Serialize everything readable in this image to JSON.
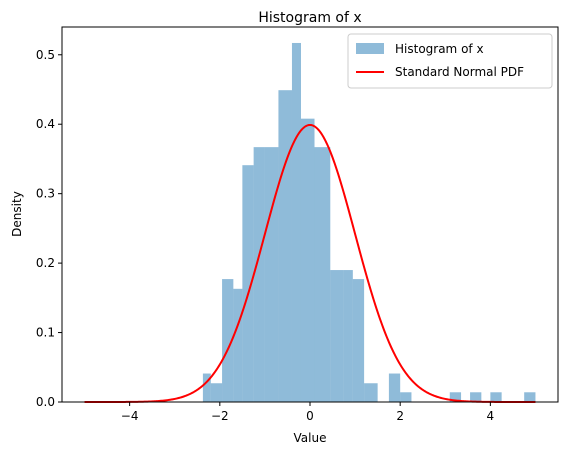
{
  "chart_data": {
    "type": "bar",
    "title": "Histogram of x",
    "xlabel": "Value",
    "ylabel": "Density",
    "xlim": [
      -5.5,
      5.5
    ],
    "ylim": [
      0,
      0.54
    ],
    "xticks": [
      -4,
      -2,
      0,
      2,
      4
    ],
    "yticks": [
      0.0,
      0.1,
      0.2,
      0.3,
      0.4,
      0.5
    ],
    "xtick_labels": [
      "−4",
      "−2",
      "0",
      "2",
      "4"
    ],
    "ytick_labels": [
      "0.0",
      "0.1",
      "0.2",
      "0.3",
      "0.4",
      "0.5"
    ],
    "legend": {
      "position": "top-right",
      "entries": [
        "Histogram of x",
        "Standard Normal PDF"
      ]
    },
    "grid": false,
    "colors": {
      "histogram": "#1f77b4",
      "pdf": "#ff0000"
    },
    "series": [
      {
        "name": "Histogram of x",
        "kind": "histogram",
        "bin_edges": [
          -2.375,
          -2.2,
          -1.95,
          -1.7,
          -1.5,
          -1.25,
          -1.0,
          -0.7,
          -0.4,
          -0.2,
          0.1,
          0.45,
          0.75,
          0.95,
          1.2,
          1.5,
          1.75,
          2.0,
          2.25
        ],
        "values": [
          0.041,
          0.027,
          0.177,
          0.163,
          0.341,
          0.367,
          0.367,
          0.449,
          0.517,
          0.408,
          0.367,
          0.19,
          0.19,
          0.177,
          0.027,
          0.0,
          0.041,
          0.014
        ],
        "extra_bins": [
          {
            "x0": 3.1,
            "x1": 3.35,
            "value": 0.014
          },
          {
            "x0": 3.55,
            "x1": 3.8,
            "value": 0.014
          },
          {
            "x0": 4.0,
            "x1": 4.25,
            "value": 0.014
          },
          {
            "x0": 4.75,
            "x1": 5.0,
            "value": 0.014
          }
        ]
      },
      {
        "name": "Standard Normal PDF",
        "kind": "line",
        "function": "standard_normal_pdf",
        "x_range": [
          -5,
          5
        ]
      }
    ]
  }
}
